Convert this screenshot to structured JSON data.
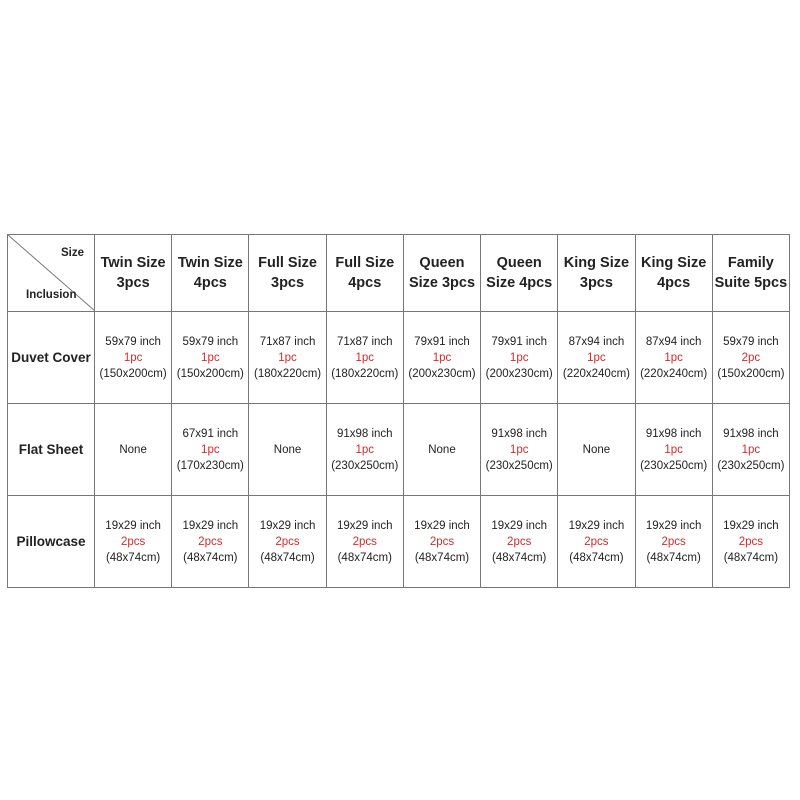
{
  "corner": {
    "size": "Size",
    "inclusion": "Inclusion"
  },
  "headers": [
    {
      "l1": "Twin Size",
      "l2": "3pcs"
    },
    {
      "l1": "Twin Size",
      "l2": "4pcs"
    },
    {
      "l1": "Full Size",
      "l2": "3pcs"
    },
    {
      "l1": "Full Size",
      "l2": "4pcs"
    },
    {
      "l1": "Queen",
      "l2": "Size 3pcs"
    },
    {
      "l1": "Queen",
      "l2": "Size 4pcs"
    },
    {
      "l1": "King Size",
      "l2": "3pcs"
    },
    {
      "l1": "King Size",
      "l2": "4pcs"
    },
    {
      "l1": "Family",
      "l2": "Suite 5pcs"
    }
  ],
  "rows": [
    {
      "label": "Duvet Cover",
      "cells": [
        {
          "inch": "59x79 inch",
          "qty": "1pc",
          "cm": "(150x200cm)"
        },
        {
          "inch": "59x79 inch",
          "qty": "1pc",
          "cm": "(150x200cm)"
        },
        {
          "inch": "71x87 inch",
          "qty": "1pc",
          "cm": "(180x220cm)"
        },
        {
          "inch": "71x87 inch",
          "qty": "1pc",
          "cm": "(180x220cm)"
        },
        {
          "inch": "79x91 inch",
          "qty": "1pc",
          "cm": "(200x230cm)"
        },
        {
          "inch": "79x91 inch",
          "qty": "1pc",
          "cm": "(200x230cm)"
        },
        {
          "inch": "87x94 inch",
          "qty": "1pc",
          "cm": "(220x240cm)"
        },
        {
          "inch": "87x94 inch",
          "qty": "1pc",
          "cm": "(220x240cm)"
        },
        {
          "inch": "59x79 inch",
          "qty": "2pc",
          "cm": "(150x200cm)"
        }
      ]
    },
    {
      "label": "Flat Sheet",
      "cells": [
        {
          "none": "None"
        },
        {
          "inch": "67x91 inch",
          "qty": "1pc",
          "cm": "(170x230cm)"
        },
        {
          "none": "None"
        },
        {
          "inch": "91x98 inch",
          "qty": "1pc",
          "cm": "(230x250cm)"
        },
        {
          "none": "None"
        },
        {
          "inch": "91x98 inch",
          "qty": "1pc",
          "cm": "(230x250cm)"
        },
        {
          "none": "None"
        },
        {
          "inch": "91x98 inch",
          "qty": "1pc",
          "cm": "(230x250cm)"
        },
        {
          "inch": "91x98 inch",
          "qty": "1pc",
          "cm": "(230x250cm)"
        }
      ]
    },
    {
      "label": "Pillowcase",
      "cells": [
        {
          "inch": "19x29 inch",
          "qty": "2pcs",
          "cm": "(48x74cm)"
        },
        {
          "inch": "19x29 inch",
          "qty": "2pcs",
          "cm": "(48x74cm)"
        },
        {
          "inch": "19x29 inch",
          "qty": "2pcs",
          "cm": "(48x74cm)"
        },
        {
          "inch": "19x29 inch",
          "qty": "2pcs",
          "cm": "(48x74cm)"
        },
        {
          "inch": "19x29 inch",
          "qty": "2pcs",
          "cm": "(48x74cm)"
        },
        {
          "inch": "19x29 inch",
          "qty": "2pcs",
          "cm": "(48x74cm)"
        },
        {
          "inch": "19x29 inch",
          "qty": "2pcs",
          "cm": "(48x74cm)"
        },
        {
          "inch": "19x29 inch",
          "qty": "2pcs",
          "cm": "(48x74cm)"
        },
        {
          "inch": "19x29 inch",
          "qty": "2pcs",
          "cm": "(48x74cm)"
        }
      ]
    }
  ],
  "colors": {
    "quantity": "#d42a2a",
    "border": "#777777"
  }
}
